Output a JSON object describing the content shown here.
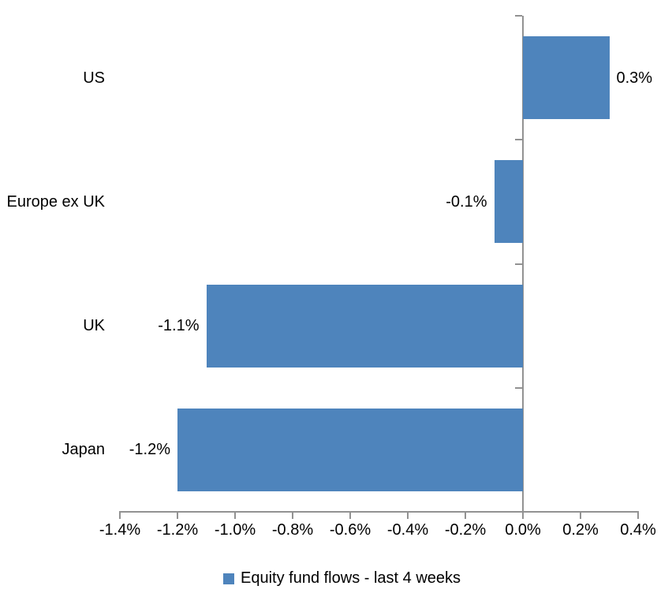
{
  "chart_data": {
    "type": "bar",
    "orientation": "horizontal",
    "categories": [
      "US",
      "Europe ex UK",
      "UK",
      "Japan"
    ],
    "series": [
      {
        "name": "Equity fund flows - last 4 weeks",
        "values": [
          0.3,
          -0.1,
          -1.1,
          -1.2
        ],
        "value_labels": [
          "0.3%",
          "-0.1%",
          "-1.1%",
          "-1.2%"
        ]
      }
    ],
    "xlabel": "",
    "ylabel": "",
    "xlim": [
      -1.4,
      0.4
    ],
    "x_tick_step": 0.2,
    "x_tick_labels": [
      "-1.4%",
      "-1.2%",
      "-1.0%",
      "-0.8%",
      "-0.6%",
      "-0.4%",
      "-0.2%",
      "0.0%",
      "0.2%",
      "0.4%"
    ],
    "grid": false,
    "legend_position": "bottom",
    "data_labels": "outside-end",
    "bar_color": "#4E84BC",
    "axis_color": "#929292",
    "text_color": "#000000"
  },
  "legend": {
    "label": "Equity fund flows - last 4 weeks",
    "swatch_color": "#4E84BC"
  }
}
